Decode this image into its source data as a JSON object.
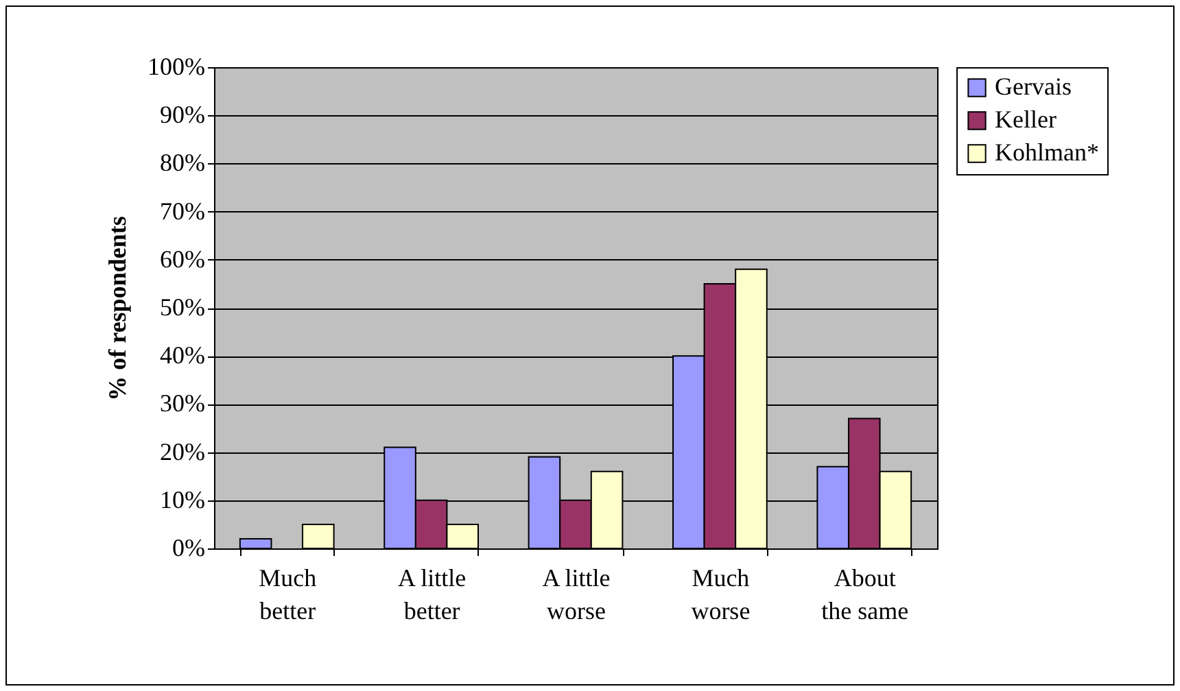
{
  "chart_data": {
    "type": "bar",
    "ylabel": "% of respondents",
    "categories": [
      "Much\nbetter",
      "A little\nbetter",
      "A little\nworse",
      "Much\nworse",
      "About\nthe same"
    ],
    "series": [
      {
        "name": "Gervais",
        "color": "#9999ff",
        "values": [
          2,
          21,
          19,
          40,
          17
        ]
      },
      {
        "name": "Keller",
        "color": "#993366",
        "values": [
          0,
          10,
          10,
          55,
          27
        ]
      },
      {
        "name": "Kohlman*",
        "color": "#ffffcc",
        "values": [
          5,
          5,
          16,
          58,
          16
        ]
      }
    ],
    "ylim": [
      0,
      100
    ],
    "yticks": [
      {
        "value": 0,
        "label": "0%"
      },
      {
        "value": 10,
        "label": "10%"
      },
      {
        "value": 20,
        "label": "20%"
      },
      {
        "value": 30,
        "label": "30%"
      },
      {
        "value": 40,
        "label": "40%"
      },
      {
        "value": 50,
        "label": "50%"
      },
      {
        "value": 60,
        "label": "60%"
      },
      {
        "value": 70,
        "label": "70%"
      },
      {
        "value": 80,
        "label": "80%"
      },
      {
        "value": 90,
        "label": "90%"
      },
      {
        "value": 100,
        "label": "100%"
      }
    ],
    "grid": "y",
    "legend": "right"
  }
}
